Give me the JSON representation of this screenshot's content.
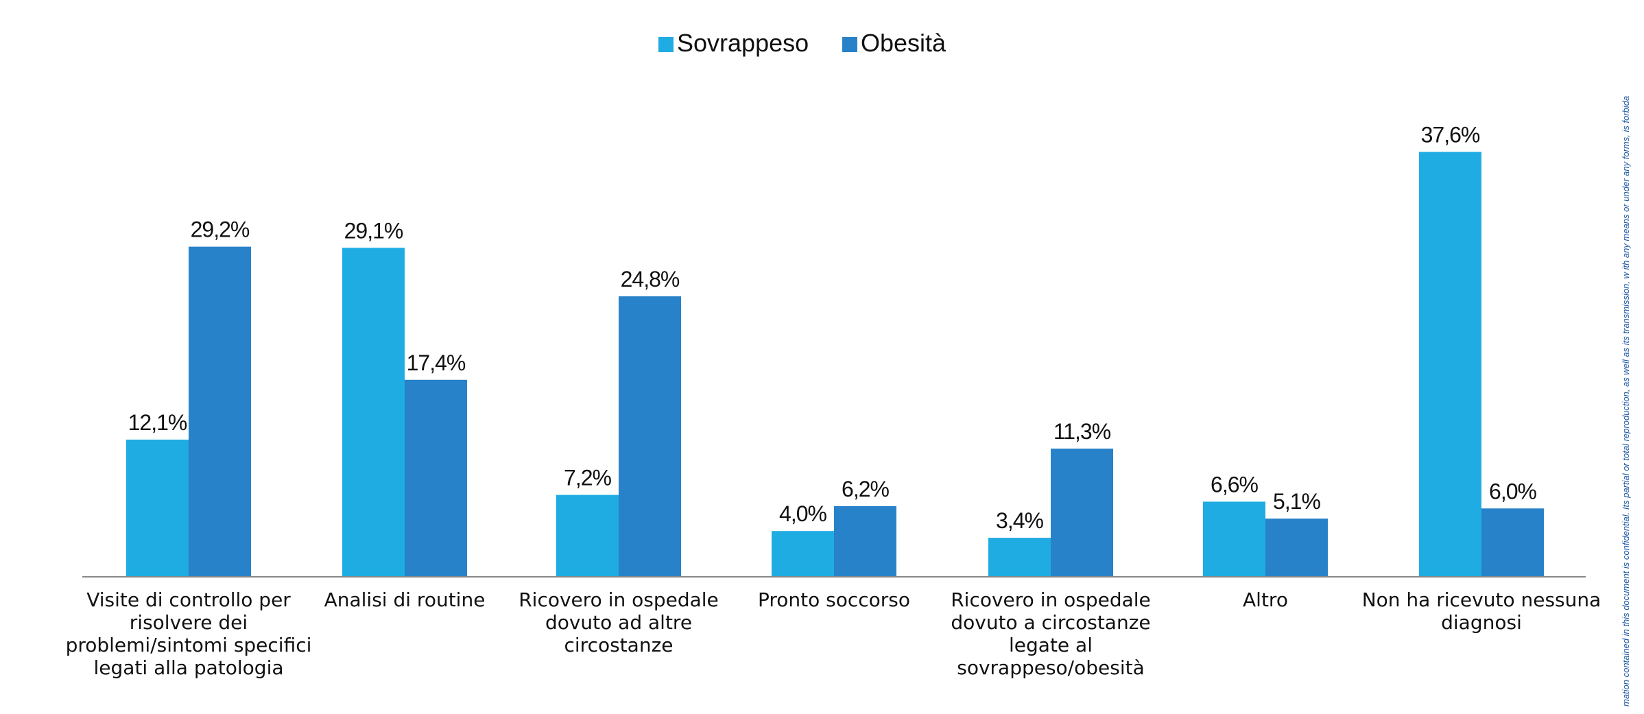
{
  "legend": {
    "sovrappeso_label": "Sovrappeso",
    "obesita_label": "Obesità"
  },
  "colors": {
    "sovrappeso": "#1FACE3",
    "obesita": "#2882C9",
    "axis": "#888888",
    "side_text": "#1F5AA6"
  },
  "side_text": "mation contained in this document is confidential. Its partial or total reproduction, as well as its transmission, w ith any means or under any forms, is forbida",
  "chart_data": {
    "type": "bar",
    "title": "",
    "xlabel": "",
    "ylabel": "",
    "ylim": [
      0,
      40
    ],
    "grid": false,
    "legend_position": "top-center",
    "categories": [
      [
        "Visite di controllo per",
        "risolvere dei",
        "problemi/sintomi specifici",
        "legati alla patologia"
      ],
      [
        "Analisi di routine"
      ],
      [
        "Ricovero in ospedale",
        "dovuto ad altre",
        "circostanze"
      ],
      [
        "Pronto soccorso"
      ],
      [
        "Ricovero in ospedale",
        "dovuto a circostanze",
        "legate al",
        "sovrappeso/obesità"
      ],
      [
        "Altro"
      ],
      [
        "Non ha ricevuto nessuna",
        "diagnosi"
      ]
    ],
    "series": [
      {
        "name": "Sovrappeso",
        "color": "#1FACE3",
        "values": [
          12.1,
          29.1,
          7.2,
          4.0,
          3.4,
          6.6,
          37.6
        ],
        "labels": [
          "12,1%",
          "29,1%",
          "7,2%",
          "4,0%",
          "3,4%",
          "6,6%",
          "37,6%"
        ]
      },
      {
        "name": "Obesità",
        "color": "#2882C9",
        "values": [
          29.2,
          17.4,
          24.8,
          6.2,
          11.3,
          5.1,
          6.0
        ],
        "labels": [
          "29,2%",
          "17,4%",
          "24,8%",
          "6,2%",
          "11,3%",
          "5,1%",
          "6,0%"
        ]
      }
    ]
  }
}
